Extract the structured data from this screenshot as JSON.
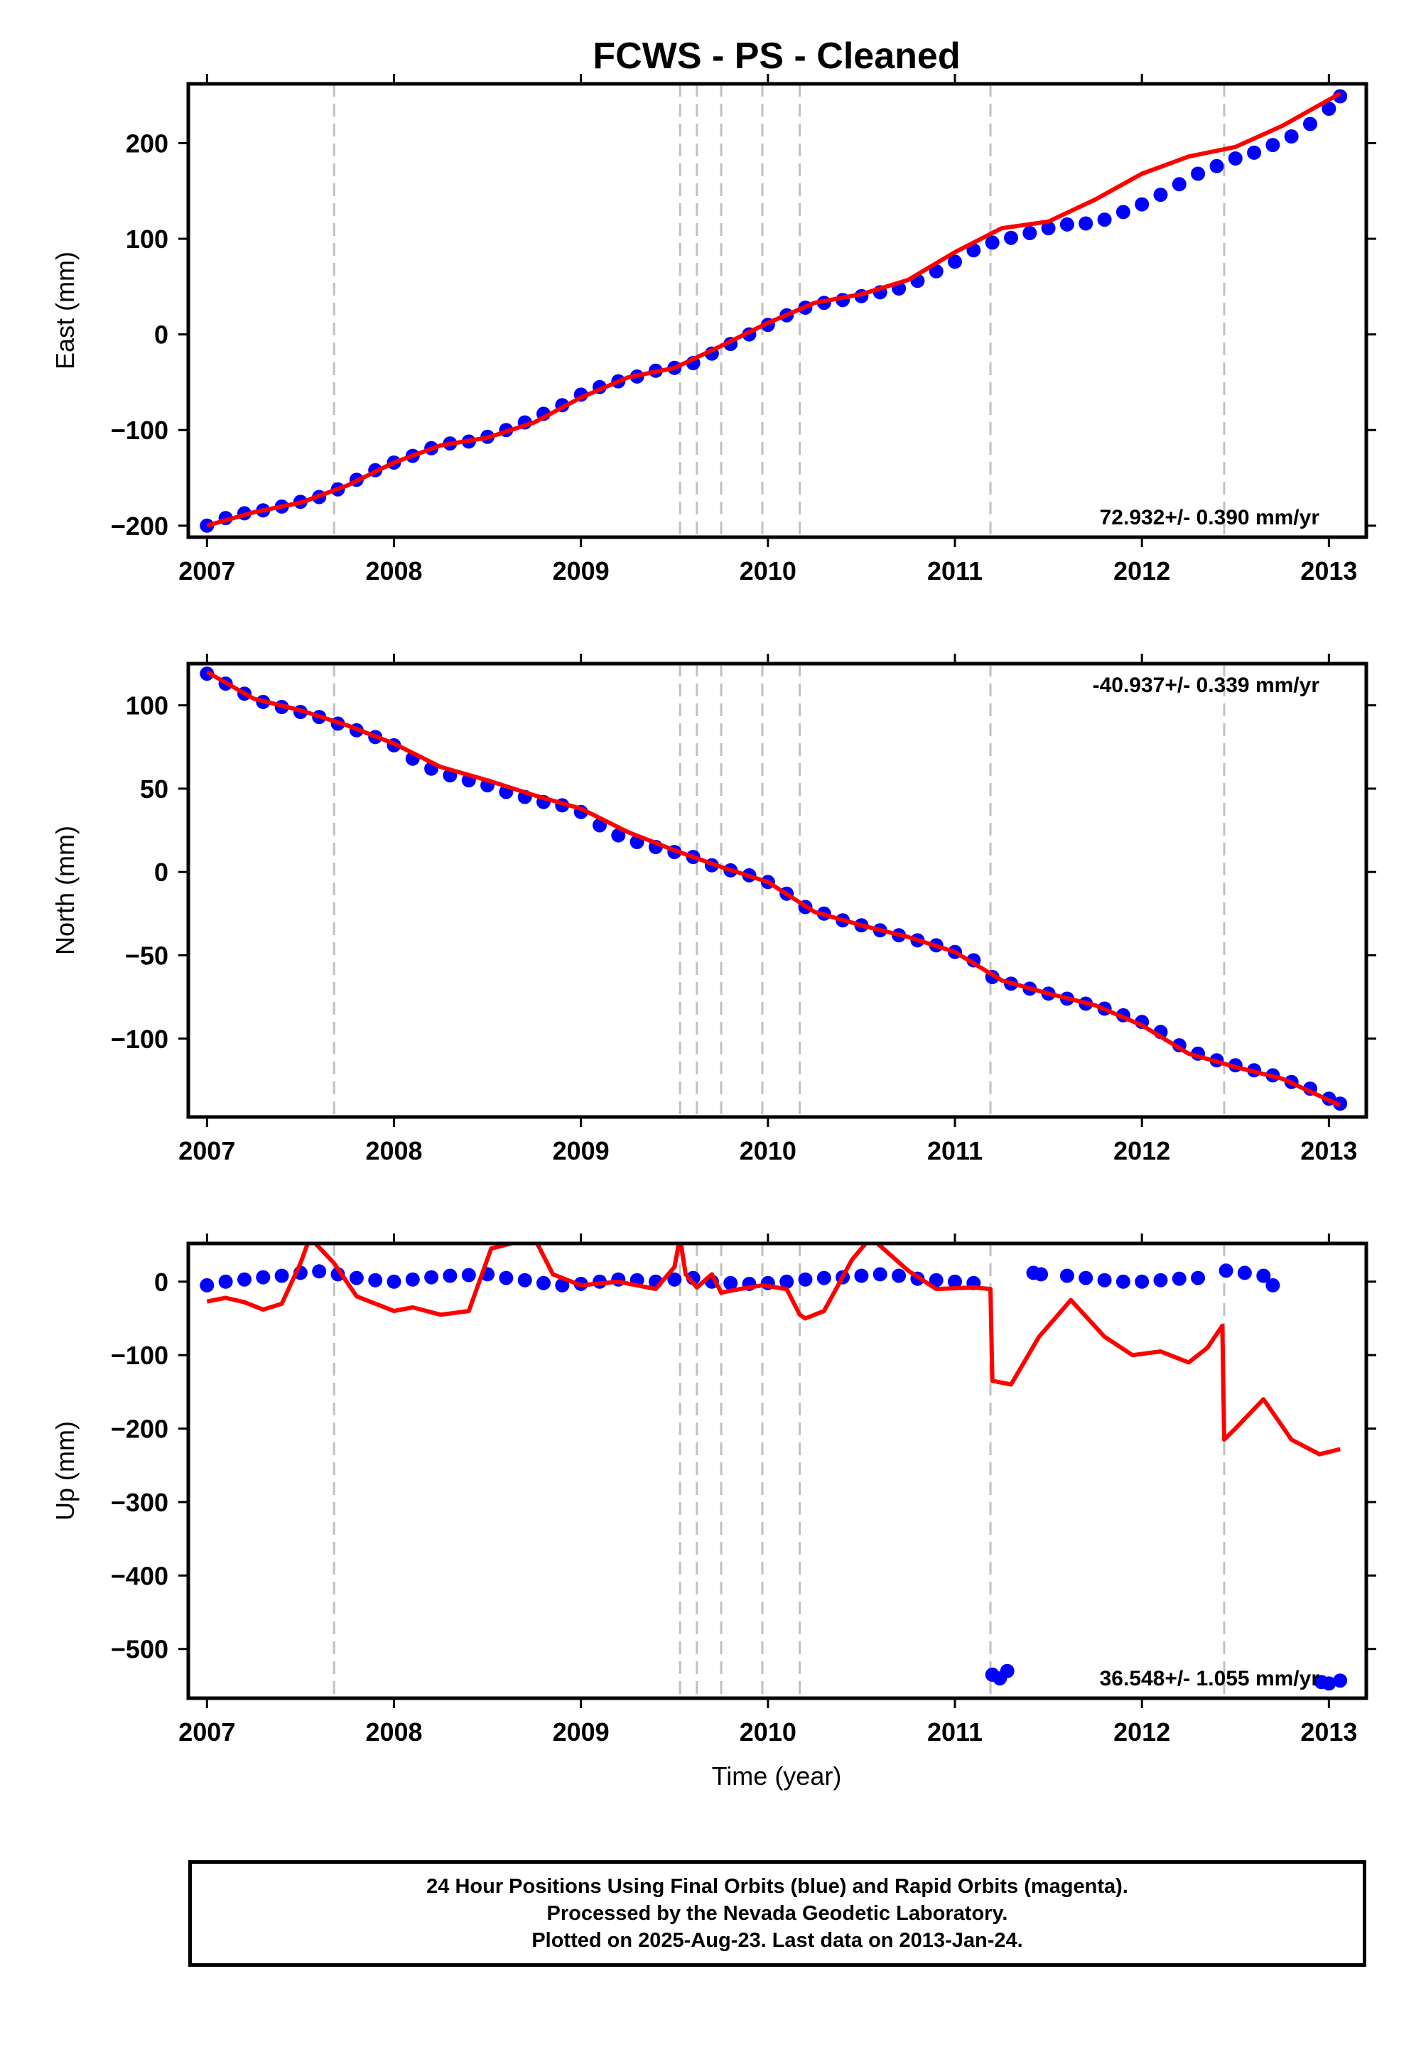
{
  "title": "FCWS  - PS - Cleaned",
  "xlabel": "Time (year)",
  "footer": {
    "line1": "24 Hour Positions Using Final Orbits (blue) and Rapid Orbits (magenta).",
    "line2": "Processed by the Nevada Geodetic Laboratory.",
    "line3": "Plotted on 2025-Aug-23. Last data on 2013-Jan-24."
  },
  "colors": {
    "data_points": "#0000ff",
    "model_fit": "#ff0000",
    "event_lines": "#c0c0c0",
    "frame": "#000000"
  },
  "chart_data": [
    {
      "type": "scatter",
      "component": "East",
      "ylabel": "East (mm)",
      "xlim": [
        2006.9,
        2013.2
      ],
      "ylim": [
        -212,
        262
      ],
      "xticks": [
        2007,
        2008,
        2009,
        2010,
        2011,
        2012,
        2013
      ],
      "yticks": [
        -200,
        -100,
        0,
        100,
        200
      ],
      "rate_label": "72.932+/- 0.390 mm/yr",
      "rate_position": "bottom-right",
      "event_lines_x": [
        2007.68,
        2009.53,
        2009.62,
        2009.75,
        2009.97,
        2010.17,
        2011.19,
        2012.44
      ],
      "series": [
        {
          "kind": "points",
          "x": [
            2007.0,
            2007.1,
            2007.2,
            2007.3,
            2007.4,
            2007.5,
            2007.6,
            2007.7,
            2007.8,
            2007.9,
            2008.0,
            2008.1,
            2008.2,
            2008.3,
            2008.4,
            2008.5,
            2008.6,
            2008.7,
            2008.8,
            2008.9,
            2009.0,
            2009.1,
            2009.2,
            2009.3,
            2009.4,
            2009.5,
            2009.6,
            2009.7,
            2009.8,
            2009.9,
            2010.0,
            2010.1,
            2010.2,
            2010.3,
            2010.4,
            2010.5,
            2010.6,
            2010.7,
            2010.8,
            2010.9,
            2011.0,
            2011.1,
            2011.2,
            2011.3,
            2011.4,
            2011.5,
            2011.6,
            2011.7,
            2011.8,
            2011.9,
            2012.0,
            2012.1,
            2012.2,
            2012.3,
            2012.4,
            2012.5,
            2012.6,
            2012.7,
            2012.8,
            2012.9,
            2013.0,
            2013.06
          ],
          "y": [
            -200,
            -192,
            -187,
            -184,
            -180,
            -175,
            -170,
            -162,
            -152,
            -142,
            -134,
            -127,
            -119,
            -114,
            -112,
            -107,
            -100,
            -92,
            -83,
            -74,
            -63,
            -55,
            -49,
            -44,
            -38,
            -35,
            -30,
            -20,
            -10,
            0,
            10,
            20,
            28,
            33,
            36,
            40,
            44,
            48,
            56,
            66,
            76,
            88,
            96,
            101,
            106,
            111,
            115,
            116,
            120,
            128,
            136,
            146,
            157,
            168,
            176,
            184,
            190,
            198,
            207,
            220,
            236,
            249
          ]
        },
        {
          "kind": "line",
          "x": [
            2007.0,
            2007.25,
            2007.5,
            2007.75,
            2008.0,
            2008.25,
            2008.5,
            2008.75,
            2009.0,
            2009.25,
            2009.5,
            2009.75,
            2010.0,
            2010.25,
            2010.5,
            2010.75,
            2011.0,
            2011.25,
            2011.5,
            2011.75,
            2012.0,
            2012.25,
            2012.5,
            2012.75,
            2013.06
          ],
          "y": [
            -200,
            -186,
            -176,
            -158,
            -134,
            -116,
            -108,
            -92,
            -66,
            -45,
            -35,
            -12,
            12,
            33,
            42,
            57,
            86,
            111,
            118,
            141,
            168,
            186,
            196,
            218,
            252
          ]
        }
      ]
    },
    {
      "type": "scatter",
      "component": "North",
      "ylabel": "North (mm)",
      "xlim": [
        2006.9,
        2013.2
      ],
      "ylim": [
        -147,
        125
      ],
      "xticks": [
        2007,
        2008,
        2009,
        2010,
        2011,
        2012,
        2013
      ],
      "yticks": [
        -100,
        -50,
        0,
        50,
        100
      ],
      "rate_label": "-40.937+/- 0.339 mm/yr",
      "rate_position": "top-right",
      "event_lines_x": [
        2007.68,
        2009.53,
        2009.62,
        2009.75,
        2009.97,
        2010.17,
        2011.19,
        2012.44
      ],
      "series": [
        {
          "kind": "points",
          "x": [
            2007.0,
            2007.1,
            2007.2,
            2007.3,
            2007.4,
            2007.5,
            2007.6,
            2007.7,
            2007.8,
            2007.9,
            2008.0,
            2008.1,
            2008.2,
            2008.3,
            2008.4,
            2008.5,
            2008.6,
            2008.7,
            2008.8,
            2008.9,
            2009.0,
            2009.1,
            2009.2,
            2009.3,
            2009.4,
            2009.5,
            2009.6,
            2009.7,
            2009.8,
            2009.9,
            2010.0,
            2010.1,
            2010.2,
            2010.3,
            2010.4,
            2010.5,
            2010.6,
            2010.7,
            2010.8,
            2010.9,
            2011.0,
            2011.1,
            2011.2,
            2011.3,
            2011.4,
            2011.5,
            2011.6,
            2011.7,
            2011.8,
            2011.9,
            2012.0,
            2012.1,
            2012.2,
            2012.3,
            2012.4,
            2012.5,
            2012.6,
            2012.7,
            2012.8,
            2012.9,
            2013.0,
            2013.06
          ],
          "y": [
            119,
            113,
            107,
            102,
            99,
            96,
            93,
            89,
            85,
            81,
            76,
            68,
            62,
            58,
            55,
            52,
            48,
            45,
            42,
            40,
            36,
            28,
            22,
            18,
            15,
            12,
            9,
            4,
            1,
            -2,
            -6,
            -13,
            -21,
            -25,
            -29,
            -32,
            -35,
            -38,
            -41,
            -44,
            -48,
            -53,
            -63,
            -67,
            -70,
            -73,
            -76,
            -79,
            -82,
            -86,
            -90,
            -96,
            -104,
            -109,
            -113,
            -116,
            -119,
            -122,
            -126,
            -130,
            -136,
            -139
          ]
        },
        {
          "kind": "line",
          "x": [
            2007.0,
            2007.25,
            2007.5,
            2007.75,
            2008.0,
            2008.25,
            2008.5,
            2008.75,
            2009.0,
            2009.25,
            2009.5,
            2009.75,
            2010.0,
            2010.25,
            2010.5,
            2010.75,
            2011.0,
            2011.25,
            2011.5,
            2011.75,
            2012.0,
            2012.25,
            2012.5,
            2012.75,
            2013.06
          ],
          "y": [
            120,
            104,
            97,
            88,
            77,
            63,
            55,
            46,
            38,
            24,
            13,
            3,
            -6,
            -24,
            -32,
            -39,
            -48,
            -65,
            -73,
            -80,
            -92,
            -109,
            -117,
            -124,
            -140
          ]
        }
      ]
    },
    {
      "type": "scatter",
      "component": "Up",
      "ylabel": "Up (mm)",
      "xlim": [
        2006.9,
        2013.2
      ],
      "ylim": [
        -567,
        52
      ],
      "xticks": [
        2007,
        2008,
        2009,
        2010,
        2011,
        2012,
        2013
      ],
      "yticks": [
        -500,
        -400,
        -300,
        -200,
        -100,
        0
      ],
      "rate_label": "36.548+/- 1.055 mm/yr",
      "rate_position": "bottom-right",
      "event_lines_x": [
        2007.68,
        2009.53,
        2009.62,
        2009.75,
        2009.97,
        2010.17,
        2011.19,
        2012.44
      ],
      "series": [
        {
          "kind": "points",
          "x": [
            2007.0,
            2007.1,
            2007.2,
            2007.3,
            2007.4,
            2007.5,
            2007.6,
            2007.7,
            2007.8,
            2007.9,
            2008.0,
            2008.1,
            2008.2,
            2008.3,
            2008.4,
            2008.5,
            2008.6,
            2008.7,
            2008.8,
            2008.9,
            2009.0,
            2009.1,
            2009.2,
            2009.3,
            2009.4,
            2009.5,
            2009.6,
            2009.7,
            2009.8,
            2009.9,
            2010.0,
            2010.1,
            2010.2,
            2010.3,
            2010.4,
            2010.5,
            2010.6,
            2010.7,
            2010.8,
            2010.9,
            2011.0,
            2011.1,
            2011.2,
            2011.24,
            2011.28,
            2011.42,
            2011.46,
            2011.6,
            2011.7,
            2011.8,
            2011.9,
            2012.0,
            2012.1,
            2012.2,
            2012.3,
            2012.45,
            2012.55,
            2012.65,
            2012.7,
            2012.96,
            2013.0,
            2013.06
          ],
          "y": [
            -5,
            0,
            3,
            6,
            8,
            12,
            14,
            10,
            5,
            2,
            0,
            3,
            6,
            8,
            9,
            10,
            5,
            2,
            -2,
            -5,
            -3,
            0,
            3,
            2,
            0,
            3,
            5,
            0,
            -2,
            -3,
            -2,
            0,
            3,
            5,
            6,
            8,
            10,
            8,
            4,
            2,
            0,
            -2,
            -535,
            -540,
            -530,
            12,
            10,
            8,
            5,
            2,
            0,
            0,
            2,
            4,
            5,
            15,
            12,
            8,
            -5,
            -545,
            -547,
            -543
          ]
        },
        {
          "kind": "line",
          "x": [
            2007.0,
            2007.1,
            2007.2,
            2007.3,
            2007.4,
            2007.5,
            2007.55,
            2007.68,
            2007.8,
            2008.0,
            2008.1,
            2008.25,
            2008.4,
            2008.52,
            2008.75,
            2008.85,
            2009.0,
            2009.2,
            2009.4,
            2009.5,
            2009.53,
            2009.56,
            2009.62,
            2009.7,
            2009.75,
            2009.85,
            2009.97,
            2010.1,
            2010.17,
            2010.2,
            2010.3,
            2010.45,
            2010.55,
            2010.75,
            2010.9,
            2011.1,
            2011.19,
            2011.2,
            2011.3,
            2011.45,
            2011.62,
            2011.8,
            2011.95,
            2012.1,
            2012.25,
            2012.35,
            2012.43,
            2012.44,
            2012.5,
            2012.65,
            2012.8,
            2012.95,
            2013.06
          ],
          "y": [
            -27,
            -22,
            -28,
            -38,
            -30,
            25,
            60,
            25,
            -20,
            -40,
            -35,
            -45,
            -40,
            45,
            60,
            10,
            -5,
            0,
            -10,
            20,
            60,
            10,
            -8,
            10,
            -15,
            -10,
            -5,
            -10,
            -45,
            -50,
            -40,
            30,
            60,
            15,
            -10,
            -8,
            -10,
            -135,
            -140,
            -75,
            -25,
            -75,
            -100,
            -95,
            -110,
            -90,
            -60,
            -215,
            -200,
            -160,
            -215,
            -235,
            -228
          ]
        }
      ]
    }
  ]
}
